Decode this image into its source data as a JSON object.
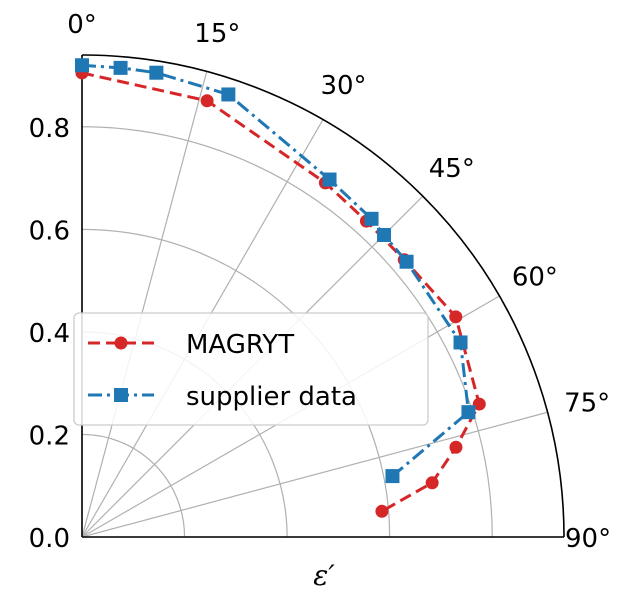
{
  "chart_data": {
    "type": "scatter",
    "projection": "polar",
    "xlabel": "ε′",
    "ylabel": "",
    "title": "",
    "rlim": [
      0,
      0.94
    ],
    "r_ticks": [
      0.0,
      0.2,
      0.4,
      0.6,
      0.8
    ],
    "r_tick_labels": [
      "0.0",
      "0.2",
      "0.4",
      "0.6",
      "0.8"
    ],
    "theta_ticks": [
      0,
      15,
      30,
      45,
      60,
      75,
      90
    ],
    "theta_tick_labels": [
      "0°",
      "15°",
      "30°",
      "45°",
      "60°",
      "75°",
      "90°"
    ],
    "theta_zero": "top",
    "theta_direction": "clockwise",
    "grid": true,
    "legend": "center-left",
    "series": [
      {
        "name": "MAGRYT",
        "color": "#d62728",
        "marker": "circle",
        "linestyle": "dashed",
        "points": [
          {
            "theta": 0,
            "r": 0.905
          },
          {
            "theta": 16,
            "r": 0.885
          },
          {
            "theta": 34.5,
            "r": 0.838
          },
          {
            "theta": 42,
            "r": 0.829
          },
          {
            "theta": 49.3,
            "r": 0.829
          },
          {
            "theta": 59.5,
            "r": 0.846
          },
          {
            "theta": 71.5,
            "r": 0.817
          },
          {
            "theta": 76.5,
            "r": 0.75
          },
          {
            "theta": 81.2,
            "r": 0.691
          },
          {
            "theta": 85.1,
            "r": 0.587
          }
        ]
      },
      {
        "name": "supplier data",
        "color": "#1f77b4",
        "marker": "square",
        "linestyle": "dashdot",
        "points": [
          {
            "theta": 0,
            "r": 0.92
          },
          {
            "theta": 4.7,
            "r": 0.918
          },
          {
            "theta": 9.1,
            "r": 0.917
          },
          {
            "theta": 18.3,
            "r": 0.909
          },
          {
            "theta": 34.7,
            "r": 0.848
          },
          {
            "theta": 42.3,
            "r": 0.839
          },
          {
            "theta": 45,
            "r": 0.833
          },
          {
            "theta": 49.7,
            "r": 0.83
          },
          {
            "theta": 62.8,
            "r": 0.83
          },
          {
            "theta": 72.1,
            "r": 0.792
          },
          {
            "theta": 78.9,
            "r": 0.617
          }
        ]
      }
    ]
  }
}
